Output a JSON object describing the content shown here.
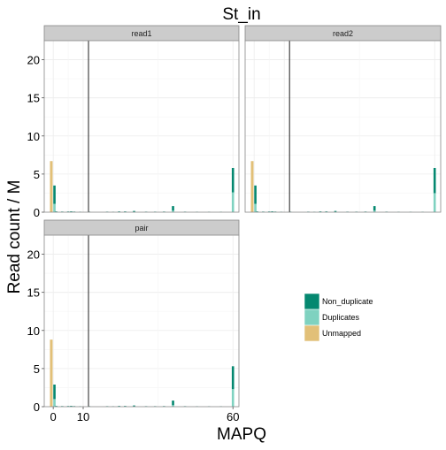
{
  "chart_data": {
    "type": "bar",
    "title": "St_in",
    "xlabel": "MAPQ",
    "ylabel": "Read count / M",
    "xlim": [
      -3,
      62
    ],
    "ylim": [
      0,
      22.5
    ],
    "x_ticks": [
      0,
      10,
      60
    ],
    "y_ticks": [
      0,
      5,
      10,
      15,
      20
    ],
    "threshold_x": 10,
    "grid": true,
    "legend_position": "right",
    "colors": {
      "Non_duplicate": "#058870",
      "Duplicates": "#7fd2c0",
      "Unmapped": "#e2c078",
      "strip_bg": "#cccccc",
      "panel_border": "#888888",
      "grid": "#ececec",
      "vline": "#333333"
    },
    "legend": [
      {
        "key": "Non_duplicate",
        "label": "Non_duplicate"
      },
      {
        "key": "Duplicates",
        "label": "Duplicates"
      },
      {
        "key": "Unmapped",
        "label": "Unmapped"
      }
    ],
    "panels": [
      {
        "name": "read1",
        "unmapped": 6.7,
        "bars": [
          {
            "mapq": 0,
            "dup": 1.1,
            "nondup": 2.4
          },
          {
            "mapq": 1,
            "dup": 0.05,
            "nondup": 0.05
          },
          {
            "mapq": 3,
            "dup": 0.03,
            "nondup": 0.05
          },
          {
            "mapq": 5,
            "dup": 0.03,
            "nondup": 0.06
          },
          {
            "mapq": 6,
            "dup": 0.03,
            "nondup": 0.08
          },
          {
            "mapq": 7,
            "dup": 0.03,
            "nondup": 0.05
          },
          {
            "mapq": 9,
            "dup": 0.02,
            "nondup": 0.04
          },
          {
            "mapq": 12,
            "dup": 0.02,
            "nondup": 0.05
          },
          {
            "mapq": 18,
            "dup": 0.02,
            "nondup": 0.05
          },
          {
            "mapq": 20,
            "dup": 0.02,
            "nondup": 0.04
          },
          {
            "mapq": 22,
            "dup": 0.03,
            "nondup": 0.07
          },
          {
            "mapq": 24,
            "dup": 0.03,
            "nondup": 0.07
          },
          {
            "mapq": 27,
            "dup": 0.04,
            "nondup": 0.12
          },
          {
            "mapq": 31,
            "dup": 0.02,
            "nondup": 0.05
          },
          {
            "mapq": 34,
            "dup": 0.02,
            "nondup": 0.05
          },
          {
            "mapq": 37,
            "dup": 0.02,
            "nondup": 0.06
          },
          {
            "mapq": 40,
            "dup": 0.2,
            "nondup": 0.6
          },
          {
            "mapq": 44,
            "dup": 0.02,
            "nondup": 0.05
          },
          {
            "mapq": 48,
            "dup": 0.02,
            "nondup": 0.04
          },
          {
            "mapq": 52,
            "dup": 0.02,
            "nondup": 0.04
          },
          {
            "mapq": 56,
            "dup": 0.02,
            "nondup": 0.04
          },
          {
            "mapq": 60,
            "dup": 2.6,
            "nondup": 3.2
          }
        ]
      },
      {
        "name": "read2",
        "unmapped": 6.7,
        "bars": [
          {
            "mapq": 0,
            "dup": 1.1,
            "nondup": 2.4
          },
          {
            "mapq": 1,
            "dup": 0.05,
            "nondup": 0.05
          },
          {
            "mapq": 3,
            "dup": 0.03,
            "nondup": 0.05
          },
          {
            "mapq": 5,
            "dup": 0.03,
            "nondup": 0.06
          },
          {
            "mapq": 6,
            "dup": 0.03,
            "nondup": 0.08
          },
          {
            "mapq": 7,
            "dup": 0.03,
            "nondup": 0.05
          },
          {
            "mapq": 9,
            "dup": 0.02,
            "nondup": 0.04
          },
          {
            "mapq": 12,
            "dup": 0.02,
            "nondup": 0.05
          },
          {
            "mapq": 18,
            "dup": 0.02,
            "nondup": 0.05
          },
          {
            "mapq": 20,
            "dup": 0.02,
            "nondup": 0.04
          },
          {
            "mapq": 22,
            "dup": 0.03,
            "nondup": 0.07
          },
          {
            "mapq": 24,
            "dup": 0.03,
            "nondup": 0.07
          },
          {
            "mapq": 27,
            "dup": 0.04,
            "nondup": 0.12
          },
          {
            "mapq": 31,
            "dup": 0.02,
            "nondup": 0.05
          },
          {
            "mapq": 34,
            "dup": 0.02,
            "nondup": 0.05
          },
          {
            "mapq": 37,
            "dup": 0.02,
            "nondup": 0.06
          },
          {
            "mapq": 40,
            "dup": 0.2,
            "nondup": 0.6
          },
          {
            "mapq": 44,
            "dup": 0.02,
            "nondup": 0.05
          },
          {
            "mapq": 48,
            "dup": 0.02,
            "nondup": 0.04
          },
          {
            "mapq": 52,
            "dup": 0.02,
            "nondup": 0.04
          },
          {
            "mapq": 56,
            "dup": 0.02,
            "nondup": 0.04
          },
          {
            "mapq": 60,
            "dup": 2.5,
            "nondup": 3.3
          }
        ]
      },
      {
        "name": "pair",
        "unmapped": 8.8,
        "bars": [
          {
            "mapq": 0,
            "dup": 1.0,
            "nondup": 1.9
          },
          {
            "mapq": 1,
            "dup": 0.05,
            "nondup": 0.05
          },
          {
            "mapq": 3,
            "dup": 0.03,
            "nondup": 0.05
          },
          {
            "mapq": 5,
            "dup": 0.03,
            "nondup": 0.06
          },
          {
            "mapq": 6,
            "dup": 0.03,
            "nondup": 0.08
          },
          {
            "mapq": 7,
            "dup": 0.03,
            "nondup": 0.05
          },
          {
            "mapq": 9,
            "dup": 0.02,
            "nondup": 0.04
          },
          {
            "mapq": 12,
            "dup": 0.02,
            "nondup": 0.05
          },
          {
            "mapq": 18,
            "dup": 0.02,
            "nondup": 0.05
          },
          {
            "mapq": 20,
            "dup": 0.02,
            "nondup": 0.04
          },
          {
            "mapq": 22,
            "dup": 0.03,
            "nondup": 0.07
          },
          {
            "mapq": 24,
            "dup": 0.03,
            "nondup": 0.07
          },
          {
            "mapq": 27,
            "dup": 0.04,
            "nondup": 0.12
          },
          {
            "mapq": 31,
            "dup": 0.02,
            "nondup": 0.05
          },
          {
            "mapq": 34,
            "dup": 0.02,
            "nondup": 0.05
          },
          {
            "mapq": 37,
            "dup": 0.02,
            "nondup": 0.06
          },
          {
            "mapq": 40,
            "dup": 0.2,
            "nondup": 0.6
          },
          {
            "mapq": 44,
            "dup": 0.02,
            "nondup": 0.05
          },
          {
            "mapq": 48,
            "dup": 0.02,
            "nondup": 0.04
          },
          {
            "mapq": 52,
            "dup": 0.02,
            "nondup": 0.04
          },
          {
            "mapq": 56,
            "dup": 0.02,
            "nondup": 0.04
          },
          {
            "mapq": 60,
            "dup": 2.3,
            "nondup": 3.0
          }
        ]
      }
    ]
  }
}
